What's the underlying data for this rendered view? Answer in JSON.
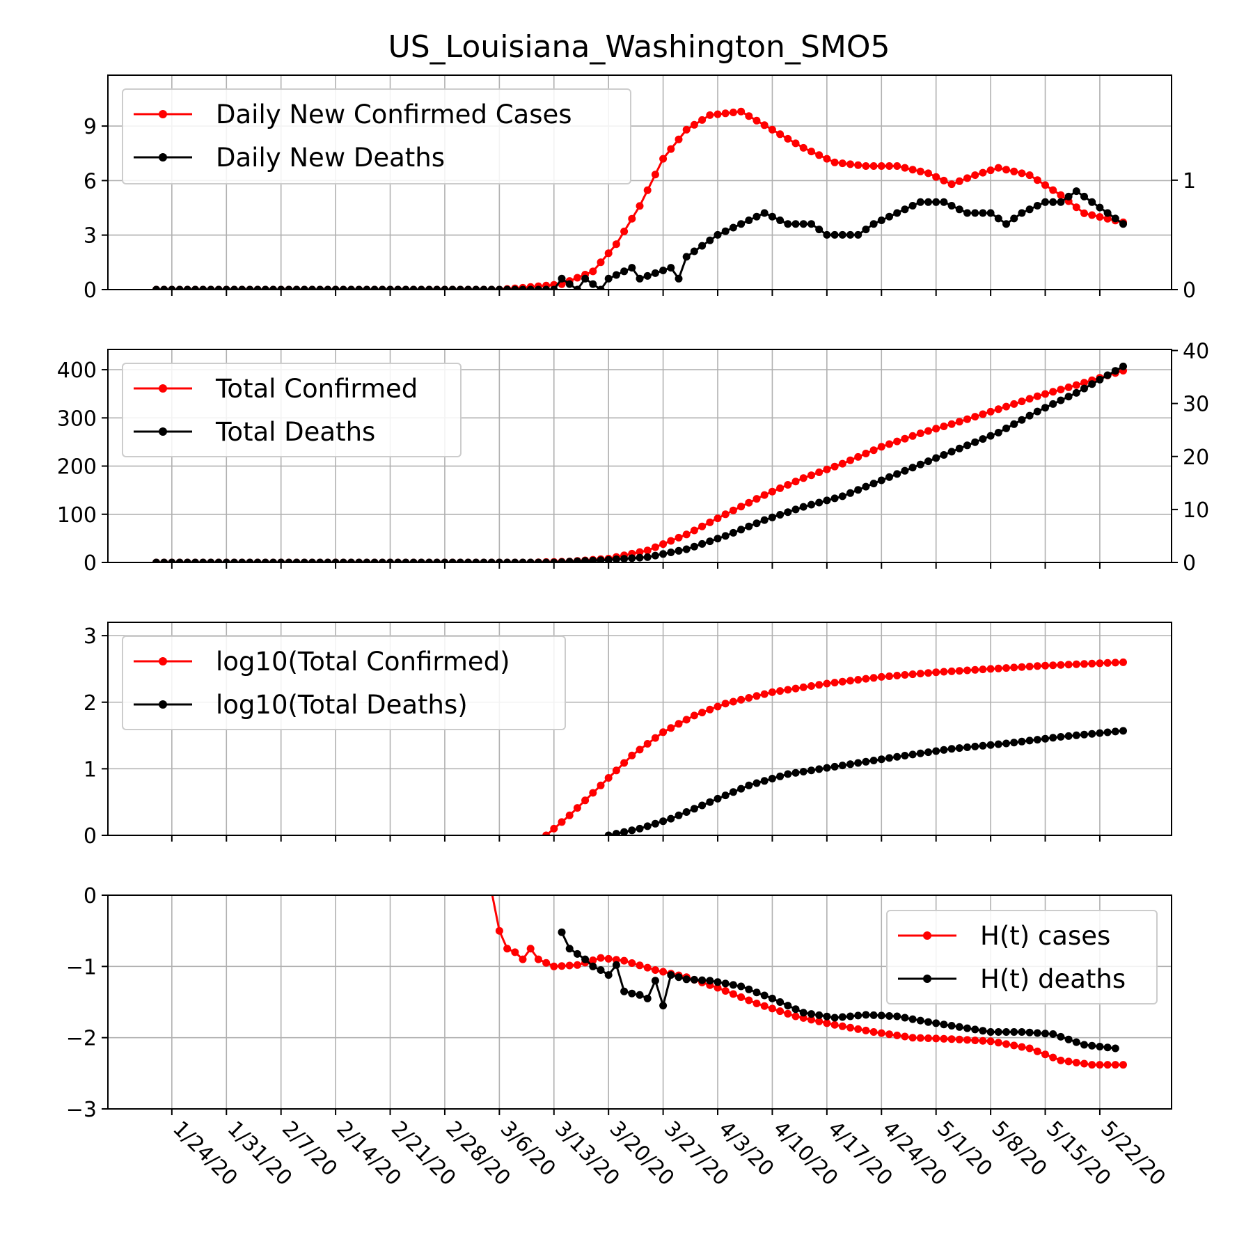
{
  "figure": {
    "title": "US_Louisiana_Washington_SMO5"
  },
  "x_axis": {
    "tick_labels": [
      "1/24/20",
      "1/31/20",
      "2/7/20",
      "2/14/20",
      "2/21/20",
      "2/28/20",
      "3/6/20",
      "3/13/20",
      "3/20/20",
      "3/27/20",
      "4/3/20",
      "4/10/20",
      "4/17/20",
      "4/24/20",
      "5/1/20",
      "5/8/20",
      "5/15/20",
      "5/22/20"
    ],
    "first_date": "1/22/20",
    "last_date": "5/25/20",
    "tick_spacing_days": 7
  },
  "chart_data": [
    {
      "type": "line",
      "panel": "daily",
      "ylim": [
        0,
        11.8
      ],
      "yticks": [
        0,
        3,
        6,
        9
      ],
      "y2lim": [
        0,
        1.96
      ],
      "y2ticks": [
        0,
        1
      ],
      "grid": true,
      "legend_position": "upper-left",
      "series": [
        {
          "name": "Daily New Confirmed Cases",
          "color": "#ff0000",
          "axis": "left",
          "points": [
            [
              "1/22/20",
              0
            ],
            [
              "3/6/20",
              0
            ],
            [
              "3/9/20",
              0.1
            ],
            [
              "3/14/20",
              0.3
            ],
            [
              "3/18/20",
              1.0
            ],
            [
              "3/21/20",
              2.5
            ],
            [
              "3/24/20",
              4.6
            ],
            [
              "3/27/20",
              7.2
            ],
            [
              "3/30/20",
              8.8
            ],
            [
              "4/2/20",
              9.6
            ],
            [
              "4/6/20",
              9.8
            ],
            [
              "4/10/20",
              8.8
            ],
            [
              "4/14/20",
              7.8
            ],
            [
              "4/18/20",
              7.0
            ],
            [
              "4/22/20",
              6.8
            ],
            [
              "4/26/20",
              6.8
            ],
            [
              "4/30/20",
              6.4
            ],
            [
              "5/3/20",
              5.8
            ],
            [
              "5/6/20",
              6.3
            ],
            [
              "5/9/20",
              6.7
            ],
            [
              "5/13/20",
              6.3
            ],
            [
              "5/17/20",
              5.2
            ],
            [
              "5/20/20",
              4.2
            ],
            [
              "5/25/20",
              3.7
            ]
          ]
        },
        {
          "name": "Daily New Deaths",
          "color": "#000000",
          "axis": "right",
          "points": [
            [
              "1/22/20",
              0
            ],
            [
              "3/13/20",
              0
            ],
            [
              "3/14/20",
              0.1
            ],
            [
              "3/16/20",
              0
            ],
            [
              "3/17/20",
              0.1
            ],
            [
              "3/19/20",
              0
            ],
            [
              "3/20/20",
              0.1
            ],
            [
              "3/23/20",
              0.2
            ],
            [
              "3/24/20",
              0.1
            ],
            [
              "3/28/20",
              0.2
            ],
            [
              "3/29/20",
              0.1
            ],
            [
              "3/30/20",
              0.3
            ],
            [
              "4/1/20",
              0.4
            ],
            [
              "4/3/20",
              0.5
            ],
            [
              "4/6/20",
              0.6
            ],
            [
              "4/9/20",
              0.7
            ],
            [
              "4/12/20",
              0.6
            ],
            [
              "4/15/20",
              0.6
            ],
            [
              "4/17/20",
              0.5
            ],
            [
              "4/21/20",
              0.5
            ],
            [
              "4/23/20",
              0.6
            ],
            [
              "4/26/20",
              0.7
            ],
            [
              "4/29/20",
              0.8
            ],
            [
              "5/2/20",
              0.8
            ],
            [
              "5/5/20",
              0.7
            ],
            [
              "5/8/20",
              0.7
            ],
            [
              "5/10/20",
              0.6
            ],
            [
              "5/12/20",
              0.7
            ],
            [
              "5/15/20",
              0.8
            ],
            [
              "5/17/20",
              0.8
            ],
            [
              "5/19/20",
              0.9
            ],
            [
              "5/21/20",
              0.8
            ],
            [
              "5/23/20",
              0.7
            ],
            [
              "5/25/20",
              0.6
            ]
          ]
        }
      ]
    },
    {
      "type": "line",
      "panel": "total",
      "ylim": [
        0,
        442
      ],
      "yticks": [
        0,
        100,
        200,
        300,
        400
      ],
      "y2lim": [
        0,
        40.2
      ],
      "y2ticks": [
        0,
        10,
        20,
        30,
        40
      ],
      "grid": true,
      "legend_position": "upper-left",
      "series": [
        {
          "name": "Total Confirmed",
          "color": "#ff0000",
          "axis": "left",
          "points": [
            [
              "1/22/20",
              0
            ],
            [
              "3/10/20",
              0
            ],
            [
              "3/15/20",
              2
            ],
            [
              "3/20/20",
              8
            ],
            [
              "3/25/20",
              25
            ],
            [
              "3/30/20",
              58
            ],
            [
              "4/4/20",
              100
            ],
            [
              "4/9/20",
              140
            ],
            [
              "4/14/20",
              175
            ],
            [
              "4/19/20",
              205
            ],
            [
              "4/24/20",
              240
            ],
            [
              "4/29/20",
              268
            ],
            [
              "5/4/20",
              292
            ],
            [
              "5/9/20",
              318
            ],
            [
              "5/14/20",
              345
            ],
            [
              "5/19/20",
              368
            ],
            [
              "5/25/20",
              398
            ]
          ]
        },
        {
          "name": "Total Deaths",
          "color": "#000000",
          "axis": "right",
          "points": [
            [
              "1/22/20",
              0
            ],
            [
              "3/13/20",
              0
            ],
            [
              "3/20/20",
              0.5
            ],
            [
              "3/25/20",
              1
            ],
            [
              "3/30/20",
              2.5
            ],
            [
              "4/4/20",
              5
            ],
            [
              "4/9/20",
              8
            ],
            [
              "4/14/20",
              10.5
            ],
            [
              "4/19/20",
              12.5
            ],
            [
              "4/24/20",
              15.5
            ],
            [
              "4/29/20",
              18.5
            ],
            [
              "5/4/20",
              21.5
            ],
            [
              "5/9/20",
              24.5
            ],
            [
              "5/14/20",
              28.5
            ],
            [
              "5/19/20",
              32
            ],
            [
              "5/25/20",
              37
            ]
          ]
        }
      ]
    },
    {
      "type": "line",
      "panel": "log",
      "ylim": [
        0,
        3.2
      ],
      "yticks": [
        0,
        1,
        2,
        3
      ],
      "grid": true,
      "legend_position": "upper-left",
      "series": [
        {
          "name": "log10(Total Confirmed)",
          "color": "#ff0000",
          "points": [
            [
              "3/12/20",
              0
            ],
            [
              "3/15/20",
              0.3
            ],
            [
              "3/19/20",
              0.75
            ],
            [
              "3/23/20",
              1.2
            ],
            [
              "3/27/20",
              1.55
            ],
            [
              "3/31/20",
              1.8
            ],
            [
              "4/4/20",
              1.98
            ],
            [
              "4/10/20",
              2.15
            ],
            [
              "4/17/20",
              2.28
            ],
            [
              "4/24/20",
              2.38
            ],
            [
              "5/1/20",
              2.45
            ],
            [
              "5/8/20",
              2.5
            ],
            [
              "5/15/20",
              2.55
            ],
            [
              "5/25/20",
              2.6
            ]
          ]
        },
        {
          "name": "log10(Total Deaths)",
          "color": "#000000",
          "points": [
            [
              "3/20/20",
              0
            ],
            [
              "3/24/20",
              0.1
            ],
            [
              "3/28/20",
              0.25
            ],
            [
              "4/2/20",
              0.5
            ],
            [
              "4/7/20",
              0.75
            ],
            [
              "4/12/20",
              0.92
            ],
            [
              "4/19/20",
              1.05
            ],
            [
              "4/26/20",
              1.18
            ],
            [
              "5/3/20",
              1.3
            ],
            [
              "5/10/20",
              1.38
            ],
            [
              "5/17/20",
              1.48
            ],
            [
              "5/25/20",
              1.57
            ]
          ]
        }
      ]
    },
    {
      "type": "line",
      "panel": "hurst",
      "ylim": [
        -3,
        0
      ],
      "yticks": [
        0,
        -1,
        -2,
        -3
      ],
      "grid": true,
      "legend_position": "upper-right",
      "series": [
        {
          "name": "H(t) cases",
          "color": "#ff0000",
          "points": [
            [
              "3/5/20",
              0.05
            ],
            [
              "3/6/20",
              -0.5
            ],
            [
              "3/7/20",
              -0.75
            ],
            [
              "3/8/20",
              -0.8
            ],
            [
              "3/9/20",
              -0.9
            ],
            [
              "3/10/20",
              -0.75
            ],
            [
              "3/11/20",
              -0.9
            ],
            [
              "3/13/20",
              -1.0
            ],
            [
              "3/16/20",
              -0.98
            ],
            [
              "3/19/20",
              -0.88
            ],
            [
              "3/22/20",
              -0.92
            ],
            [
              "3/26/20",
              -1.05
            ],
            [
              "3/30/20",
              -1.15
            ],
            [
              "4/3/20",
              -1.3
            ],
            [
              "4/8/20",
              -1.52
            ],
            [
              "4/13/20",
              -1.7
            ],
            [
              "4/18/20",
              -1.82
            ],
            [
              "4/23/20",
              -1.92
            ],
            [
              "4/28/20",
              -2.0
            ],
            [
              "5/3/20",
              -2.02
            ],
            [
              "5/8/20",
              -2.05
            ],
            [
              "5/13/20",
              -2.15
            ],
            [
              "5/17/20",
              -2.32
            ],
            [
              "5/21/20",
              -2.38
            ],
            [
              "5/25/20",
              -2.38
            ]
          ]
        },
        {
          "name": "H(t) deaths",
          "color": "#000000",
          "points": [
            [
              "3/14/20",
              -0.52
            ],
            [
              "3/15/20",
              -0.75
            ],
            [
              "3/17/20",
              -0.9
            ],
            [
              "3/18/20",
              -1.0
            ],
            [
              "3/19/20",
              -1.05
            ],
            [
              "3/20/20",
              -1.12
            ],
            [
              "3/21/20",
              -0.98
            ],
            [
              "3/22/20",
              -1.35
            ],
            [
              "3/23/20",
              -1.38
            ],
            [
              "3/24/20",
              -1.4
            ],
            [
              "3/25/20",
              -1.45
            ],
            [
              "3/26/20",
              -1.2
            ],
            [
              "3/27/20",
              -1.55
            ],
            [
              "3/28/20",
              -1.12
            ],
            [
              "3/30/20",
              -1.18
            ],
            [
              "4/2/20",
              -1.2
            ],
            [
              "4/6/20",
              -1.28
            ],
            [
              "4/10/20",
              -1.45
            ],
            [
              "4/14/20",
              -1.65
            ],
            [
              "4/18/20",
              -1.72
            ],
            [
              "4/22/20",
              -1.68
            ],
            [
              "4/26/20",
              -1.7
            ],
            [
              "4/30/20",
              -1.78
            ],
            [
              "5/4/20",
              -1.85
            ],
            [
              "5/8/20",
              -1.92
            ],
            [
              "5/12/20",
              -1.92
            ],
            [
              "5/16/20",
              -1.95
            ],
            [
              "5/20/20",
              -2.1
            ],
            [
              "5/24/20",
              -2.15
            ]
          ]
        }
      ]
    }
  ]
}
